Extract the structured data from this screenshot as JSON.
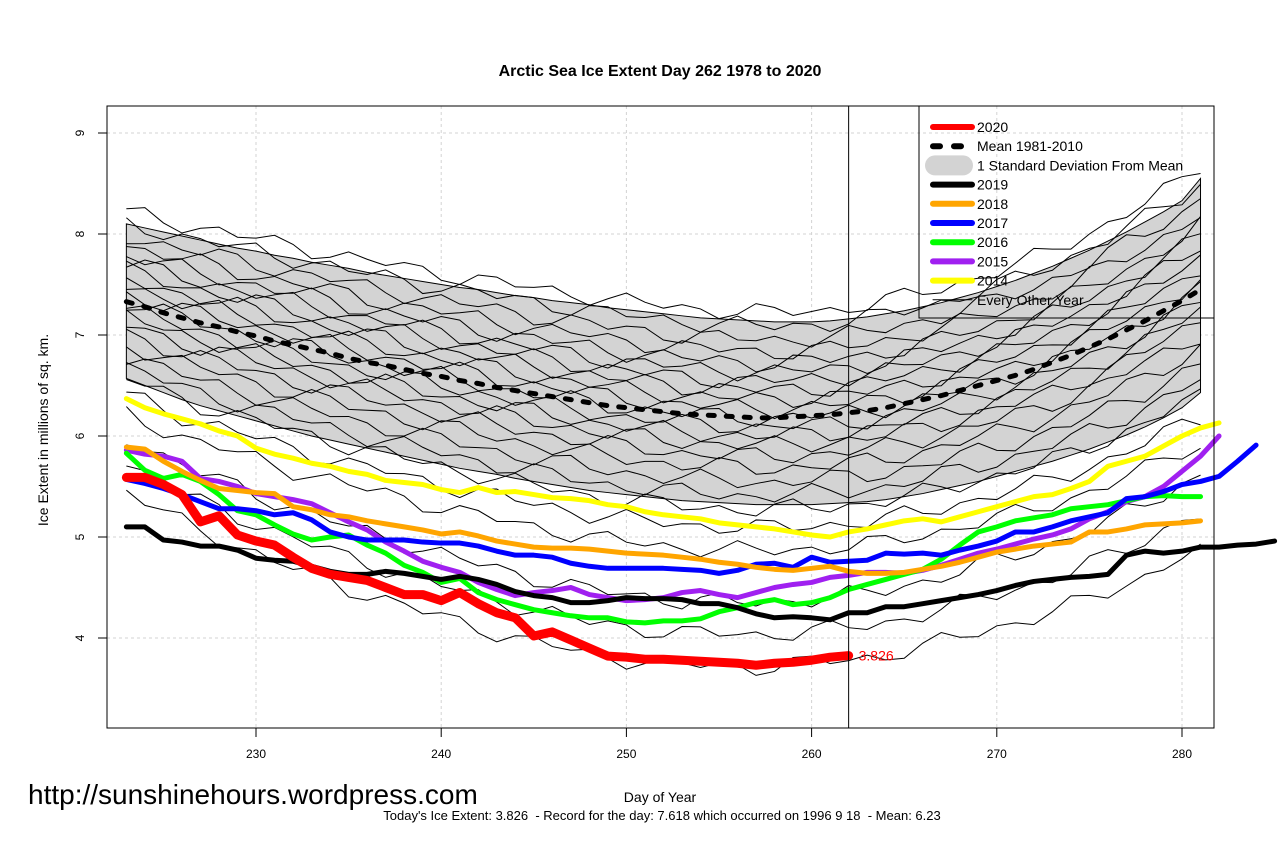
{
  "chart_data": {
    "type": "line",
    "title": "Arctic Sea Ice Extent Day 262 1978 to 2020",
    "xlabel": "Day of Year",
    "ylabel": "Ice Extent in millions of sq. km.",
    "xlim": [
      222.3,
      282.2
    ],
    "ylim": [
      3.1,
      9.25
    ],
    "x_ticks": [
      230,
      240,
      250,
      260,
      270,
      280
    ],
    "y_ticks": [
      4,
      5,
      6,
      7,
      8,
      9
    ],
    "grid": true,
    "current_day": 262,
    "legend_position": "top-right",
    "legend": [
      {
        "label": "2020",
        "color": "#ff0000",
        "style": "thick"
      },
      {
        "label": "Mean 1981-2010",
        "color": "#000000",
        "style": "dotted"
      },
      {
        "label": "1 Standard Deviation From Mean",
        "color": "#d3d3d3",
        "style": "band"
      },
      {
        "label": "2019",
        "color": "#000000",
        "style": "thick"
      },
      {
        "label": "2018",
        "color": "#ffa500",
        "style": "thick"
      },
      {
        "label": "2017",
        "color": "#0000ff",
        "style": "thick"
      },
      {
        "label": "2016",
        "color": "#00ff00",
        "style": "thick"
      },
      {
        "label": "2015",
        "color": "#a020f0",
        "style": "thick"
      },
      {
        "label": "2014",
        "color": "#ffff00",
        "style": "thick"
      },
      {
        "label": "Every Other Year",
        "color": "#000000",
        "style": "thin"
      }
    ],
    "x_start": 223,
    "mean": [
      7.33,
      7.28,
      7.22,
      7.17,
      7.12,
      7.08,
      7.03,
      6.99,
      6.94,
      6.9,
      6.86,
      6.82,
      6.77,
      6.73,
      6.7,
      6.66,
      6.62,
      6.59,
      6.55,
      6.52,
      6.48,
      6.45,
      6.42,
      6.39,
      6.36,
      6.33,
      6.3,
      6.28,
      6.26,
      6.24,
      6.22,
      6.21,
      6.2,
      6.19,
      6.18,
      6.18,
      6.19,
      6.2,
      6.21,
      6.23,
      6.25,
      6.28,
      6.32,
      6.36,
      6.4,
      6.45,
      6.5,
      6.55,
      6.6,
      6.66,
      6.73,
      6.8,
      6.88,
      6.96,
      7.05,
      7.14,
      7.24,
      7.34,
      7.45
    ],
    "sd_upper": [
      8.1,
      8.06,
      8.02,
      7.98,
      7.94,
      7.9,
      7.86,
      7.83,
      7.79,
      7.76,
      7.72,
      7.69,
      7.66,
      7.62,
      7.59,
      7.56,
      7.53,
      7.5,
      7.47,
      7.45,
      7.42,
      7.39,
      7.37,
      7.34,
      7.32,
      7.3,
      7.27,
      7.25,
      7.23,
      7.21,
      7.19,
      7.17,
      7.16,
      7.15,
      7.14,
      7.13,
      7.13,
      7.13,
      7.14,
      7.16,
      7.18,
      7.21,
      7.24,
      7.28,
      7.32,
      7.37,
      7.42,
      7.48,
      7.54,
      7.61,
      7.68,
      7.76,
      7.84,
      7.93,
      8.02,
      8.12,
      8.22,
      8.33,
      8.55
    ],
    "sd_lower": [
      6.57,
      6.5,
      6.43,
      6.36,
      6.3,
      6.25,
      6.2,
      6.15,
      6.1,
      6.05,
      6.0,
      5.96,
      5.92,
      5.88,
      5.84,
      5.8,
      5.76,
      5.72,
      5.68,
      5.65,
      5.62,
      5.58,
      5.55,
      5.52,
      5.49,
      5.46,
      5.44,
      5.42,
      5.4,
      5.38,
      5.36,
      5.35,
      5.34,
      5.33,
      5.32,
      5.32,
      5.32,
      5.32,
      5.33,
      5.34,
      5.35,
      5.37,
      5.4,
      5.43,
      5.47,
      5.51,
      5.55,
      5.6,
      5.65,
      5.7,
      5.75,
      5.81,
      5.87,
      5.94,
      6.01,
      6.09,
      6.18,
      6.28,
      6.43
    ],
    "series": [
      {
        "name": "2020",
        "color": "#ff0000",
        "values": [
          5.59,
          5.59,
          5.52,
          5.42,
          5.15,
          5.21,
          5.02,
          4.96,
          4.92,
          4.8,
          4.69,
          4.63,
          4.6,
          4.57,
          4.5,
          4.43,
          4.43,
          4.37,
          4.45,
          4.34,
          4.25,
          4.2,
          4.02,
          4.06,
          3.98,
          3.9,
          3.82,
          3.81,
          3.79,
          3.79,
          3.78,
          3.77,
          3.76,
          3.75,
          3.73,
          3.75,
          3.76,
          3.78,
          3.81,
          3.826
        ]
      },
      {
        "name": "2019",
        "color": "#000000",
        "values": [
          5.1,
          5.1,
          4.97,
          4.95,
          4.91,
          4.91,
          4.87,
          4.79,
          4.77,
          4.76,
          4.71,
          4.66,
          4.63,
          4.63,
          4.66,
          4.64,
          4.61,
          4.58,
          4.61,
          4.58,
          4.53,
          4.46,
          4.42,
          4.4,
          4.35,
          4.35,
          4.37,
          4.4,
          4.39,
          4.39,
          4.38,
          4.34,
          4.34,
          4.3,
          4.24,
          4.2,
          4.21,
          4.2,
          4.18,
          4.25,
          4.25,
          4.31,
          4.31,
          4.34,
          4.37,
          4.4,
          4.43,
          4.47,
          4.52,
          4.56,
          4.58,
          4.6,
          4.61,
          4.63,
          4.82,
          4.86,
          4.84,
          4.86,
          4.9,
          4.9,
          4.92,
          4.93,
          4.96
        ]
      },
      {
        "name": "2018",
        "color": "#ffa500",
        "values": [
          5.89,
          5.87,
          5.75,
          5.65,
          5.56,
          5.48,
          5.46,
          5.44,
          5.43,
          5.3,
          5.27,
          5.22,
          5.2,
          5.16,
          5.13,
          5.1,
          5.07,
          5.03,
          5.05,
          5.01,
          4.96,
          4.93,
          4.9,
          4.89,
          4.89,
          4.88,
          4.86,
          4.84,
          4.83,
          4.82,
          4.8,
          4.78,
          4.75,
          4.73,
          4.7,
          4.68,
          4.67,
          4.69,
          4.71,
          4.66,
          4.64,
          4.64,
          4.65,
          4.68,
          4.71,
          4.75,
          4.8,
          4.85,
          4.88,
          4.91,
          4.93,
          4.95,
          5.05,
          5.05,
          5.08,
          5.12,
          5.13,
          5.14,
          5.16
        ]
      },
      {
        "name": "2017",
        "color": "#0000ff",
        "values": [
          5.57,
          5.53,
          5.48,
          5.42,
          5.35,
          5.28,
          5.28,
          5.26,
          5.22,
          5.24,
          5.17,
          5.05,
          5.0,
          4.97,
          4.97,
          4.97,
          4.95,
          4.94,
          4.94,
          4.91,
          4.86,
          4.82,
          4.82,
          4.8,
          4.74,
          4.71,
          4.69,
          4.69,
          4.69,
          4.69,
          4.68,
          4.67,
          4.64,
          4.67,
          4.73,
          4.74,
          4.7,
          4.8,
          4.75,
          4.76,
          4.77,
          4.84,
          4.83,
          4.84,
          4.82,
          4.87,
          4.91,
          4.96,
          5.05,
          5.05,
          5.1,
          5.16,
          5.2,
          5.24,
          5.38,
          5.4,
          5.45,
          5.52,
          5.55,
          5.6,
          5.75,
          5.91
        ]
      },
      {
        "name": "2016",
        "color": "#00ff00",
        "values": [
          5.83,
          5.66,
          5.58,
          5.62,
          5.55,
          5.42,
          5.26,
          5.22,
          5.12,
          5.03,
          4.97,
          5.0,
          5.02,
          4.92,
          4.84,
          4.72,
          4.65,
          4.55,
          4.59,
          4.45,
          4.38,
          4.33,
          4.28,
          4.25,
          4.22,
          4.2,
          4.2,
          4.16,
          4.15,
          4.17,
          4.17,
          4.19,
          4.26,
          4.3,
          4.35,
          4.38,
          4.33,
          4.35,
          4.4,
          4.48,
          4.53,
          4.58,
          4.63,
          4.68,
          4.78,
          4.92,
          5.05,
          5.1,
          5.16,
          5.19,
          5.22,
          5.28,
          5.3,
          5.32,
          5.36,
          5.4,
          5.41,
          5.4,
          5.4
        ]
      },
      {
        "name": "2015",
        "color": "#a020f0",
        "values": [
          5.86,
          5.82,
          5.8,
          5.75,
          5.58,
          5.55,
          5.5,
          5.43,
          5.4,
          5.37,
          5.33,
          5.24,
          5.15,
          5.07,
          4.95,
          4.86,
          4.76,
          4.7,
          4.65,
          4.55,
          4.48,
          4.42,
          4.45,
          4.47,
          4.5,
          4.43,
          4.4,
          4.37,
          4.38,
          4.4,
          4.45,
          4.47,
          4.43,
          4.4,
          4.45,
          4.5,
          4.53,
          4.55,
          4.6,
          4.62,
          4.65,
          4.65,
          4.64,
          4.67,
          4.72,
          4.78,
          4.84,
          4.88,
          4.93,
          4.98,
          5.02,
          5.08,
          5.18,
          5.25,
          5.35,
          5.4,
          5.5,
          5.65,
          5.8,
          6.0
        ]
      },
      {
        "name": "2014",
        "color": "#ffff00",
        "values": [
          6.37,
          6.28,
          6.22,
          6.17,
          6.12,
          6.05,
          6.0,
          5.88,
          5.82,
          5.78,
          5.73,
          5.7,
          5.65,
          5.62,
          5.56,
          5.54,
          5.52,
          5.47,
          5.44,
          5.49,
          5.44,
          5.45,
          5.42,
          5.39,
          5.38,
          5.36,
          5.32,
          5.3,
          5.25,
          5.22,
          5.2,
          5.18,
          5.14,
          5.12,
          5.1,
          5.08,
          5.05,
          5.02,
          5.0,
          5.05,
          5.08,
          5.12,
          5.16,
          5.18,
          5.15,
          5.2,
          5.25,
          5.3,
          5.35,
          5.4,
          5.42,
          5.48,
          5.55,
          5.7,
          5.75,
          5.8,
          5.9,
          6.0,
          6.08,
          6.13
        ]
      }
    ],
    "annotation_last_value": "3.826"
  },
  "footer": {
    "url": "http://sunshinehours.wordpress.com",
    "summary": "Today's Ice Extent: 3.826  - Record for the day: 7.618 which occurred on 1996 9 18  - Mean: 6.23"
  }
}
